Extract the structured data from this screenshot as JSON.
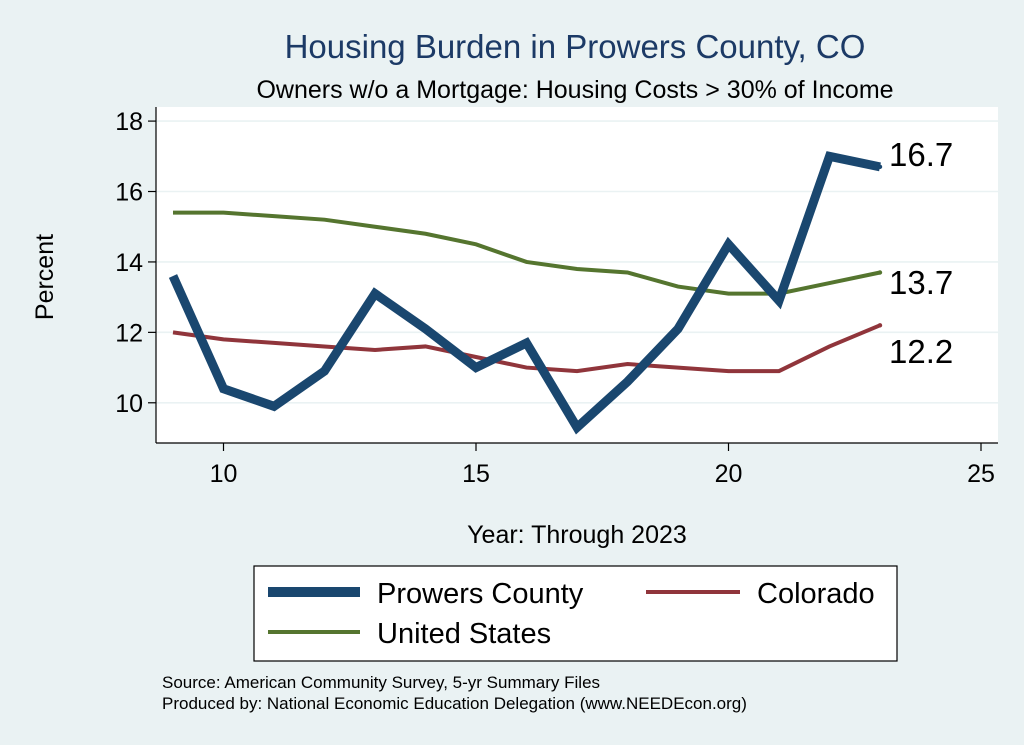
{
  "chart_data": {
    "type": "line",
    "title": "Housing Burden in Prowers County, CO",
    "subtitle": "Owners w/o a Mortgage: Housing Costs > 30% of Income",
    "xlabel": "Year: Through 2023",
    "ylabel": "Percent",
    "xlim": [
      9,
      25
    ],
    "ylim": [
      9,
      18.4
    ],
    "xticks": [
      10,
      15,
      20,
      25
    ],
    "yticks": [
      10,
      12,
      14,
      16,
      18
    ],
    "grid": true,
    "x": [
      9,
      10,
      11,
      12,
      13,
      14,
      15,
      16,
      17,
      18,
      19,
      20,
      21,
      22,
      23
    ],
    "series": [
      {
        "name": "Prowers County",
        "color": "#1a476f",
        "values": [
          13.6,
          10.4,
          9.9,
          10.9,
          13.1,
          12.1,
          11.0,
          11.7,
          9.3,
          10.6,
          12.1,
          14.5,
          12.9,
          17.0,
          16.7
        ],
        "end_label": "16.7"
      },
      {
        "name": "Colorado",
        "color": "#90353b",
        "values": [
          12.0,
          11.8,
          11.7,
          11.6,
          11.5,
          11.6,
          11.3,
          11.0,
          10.9,
          11.1,
          11.0,
          10.9,
          10.9,
          11.6,
          12.2
        ],
        "end_label": "12.2"
      },
      {
        "name": "United States",
        "color": "#55752f",
        "values": [
          15.4,
          15.4,
          15.3,
          15.2,
          15.0,
          14.8,
          14.5,
          14.0,
          13.8,
          13.7,
          13.3,
          13.1,
          13.1,
          13.4,
          13.7
        ],
        "end_label": "13.7"
      }
    ],
    "legend": {
      "position": "bottom",
      "entries": [
        "Prowers County",
        "Colorado",
        "United States"
      ]
    }
  },
  "notes": {
    "source": "Source: American Community Survey, 5-yr Summary Files",
    "producer": "Produced by: National Economic Education Delegation (www.NEEDEcon.org)"
  }
}
